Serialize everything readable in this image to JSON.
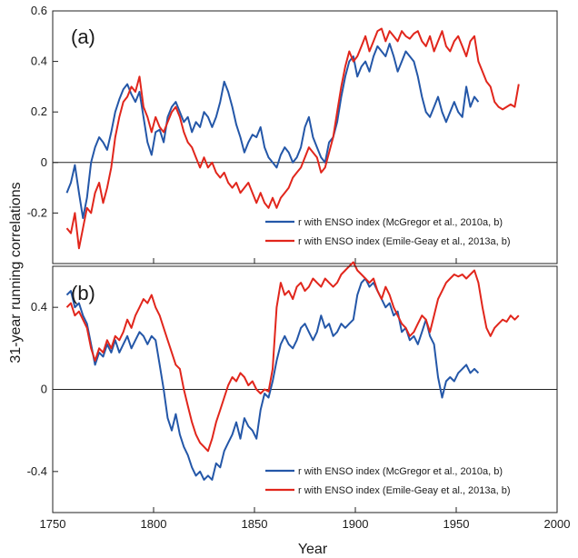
{
  "figure": {
    "xlabel": "Year",
    "ylabel": "31-year running correlations"
  },
  "colors": {
    "blue": "#2457a8",
    "red": "#e1261c",
    "axis": "#222222"
  },
  "chart_data": [
    {
      "type": "line",
      "panel_label": "(a)",
      "xlabel": "Year",
      "ylabel": "31-year running correlations",
      "xlim": [
        1750,
        2000
      ],
      "ylim": [
        -0.4,
        0.6
      ],
      "xticks": [
        1750,
        1800,
        1850,
        1900,
        1950,
        2000
      ],
      "yticks": [
        -0.2,
        0,
        0.2,
        0.4,
        0.6
      ],
      "ytick_labels": [
        "-0.2",
        "0",
        "0.2",
        "0.4",
        "0.6"
      ],
      "zero_line": true,
      "legend_position": "bottom-right",
      "series": [
        {
          "name": "r with ENSO index (McGregor  et al., 2010a, b)",
          "color": "blue",
          "x": [
            1757,
            1759,
            1761,
            1763,
            1765,
            1767,
            1769,
            1771,
            1773,
            1775,
            1777,
            1779,
            1781,
            1783,
            1785,
            1787,
            1789,
            1791,
            1793,
            1795,
            1797,
            1799,
            1801,
            1803,
            1805,
            1807,
            1809,
            1811,
            1813,
            1815,
            1817,
            1819,
            1821,
            1823,
            1825,
            1827,
            1829,
            1831,
            1833,
            1835,
            1837,
            1839,
            1841,
            1843,
            1845,
            1847,
            1849,
            1851,
            1853,
            1855,
            1857,
            1859,
            1861,
            1863,
            1865,
            1867,
            1869,
            1871,
            1873,
            1875,
            1877,
            1879,
            1881,
            1883,
            1885,
            1887,
            1889,
            1891,
            1893,
            1895,
            1897,
            1899,
            1901,
            1903,
            1905,
            1907,
            1909,
            1911,
            1913,
            1915,
            1917,
            1919,
            1921,
            1923,
            1925,
            1927,
            1929,
            1931,
            1933,
            1935,
            1937,
            1939,
            1941,
            1943,
            1945,
            1947,
            1949,
            1951,
            1953,
            1955,
            1957,
            1959,
            1961
          ],
          "y": [
            -0.12,
            -0.08,
            -0.01,
            -0.12,
            -0.22,
            -0.14,
            0.0,
            0.06,
            0.1,
            0.08,
            0.05,
            0.12,
            0.2,
            0.25,
            0.29,
            0.31,
            0.27,
            0.24,
            0.28,
            0.18,
            0.08,
            0.03,
            0.12,
            0.13,
            0.08,
            0.18,
            0.22,
            0.24,
            0.2,
            0.16,
            0.18,
            0.12,
            0.16,
            0.14,
            0.2,
            0.18,
            0.14,
            0.18,
            0.24,
            0.32,
            0.28,
            0.22,
            0.15,
            0.1,
            0.04,
            0.08,
            0.11,
            0.1,
            0.14,
            0.06,
            0.02,
            0.0,
            -0.02,
            0.03,
            0.06,
            0.04,
            0.0,
            0.02,
            0.06,
            0.14,
            0.18,
            0.1,
            0.06,
            0.02,
            0.0,
            0.08,
            0.1,
            0.16,
            0.26,
            0.34,
            0.4,
            0.42,
            0.34,
            0.38,
            0.4,
            0.36,
            0.42,
            0.46,
            0.44,
            0.42,
            0.47,
            0.42,
            0.36,
            0.4,
            0.44,
            0.42,
            0.4,
            0.34,
            0.26,
            0.2,
            0.18,
            0.22,
            0.26,
            0.2,
            0.16,
            0.2,
            0.24,
            0.2,
            0.18,
            0.3,
            0.22,
            0.26,
            0.24
          ]
        },
        {
          "name": "r with ENSO index (Emile-Geay et al., 2013a, b)",
          "color": "red",
          "x": [
            1757,
            1759,
            1761,
            1763,
            1765,
            1767,
            1769,
            1771,
            1773,
            1775,
            1777,
            1779,
            1781,
            1783,
            1785,
            1787,
            1789,
            1791,
            1793,
            1795,
            1797,
            1799,
            1801,
            1803,
            1805,
            1807,
            1809,
            1811,
            1813,
            1815,
            1817,
            1819,
            1821,
            1823,
            1825,
            1827,
            1829,
            1831,
            1833,
            1835,
            1837,
            1839,
            1841,
            1843,
            1845,
            1847,
            1849,
            1851,
            1853,
            1855,
            1857,
            1859,
            1861,
            1863,
            1865,
            1867,
            1869,
            1871,
            1873,
            1875,
            1877,
            1879,
            1881,
            1883,
            1885,
            1887,
            1889,
            1891,
            1893,
            1895,
            1897,
            1899,
            1901,
            1903,
            1905,
            1907,
            1909,
            1911,
            1913,
            1915,
            1917,
            1919,
            1921,
            1923,
            1925,
            1927,
            1929,
            1931,
            1933,
            1935,
            1937,
            1939,
            1941,
            1943,
            1945,
            1947,
            1949,
            1951,
            1953,
            1955,
            1957,
            1959,
            1961,
            1963,
            1965,
            1967,
            1969,
            1971,
            1973,
            1975,
            1977,
            1979,
            1981
          ],
          "y": [
            -0.26,
            -0.28,
            -0.2,
            -0.34,
            -0.26,
            -0.18,
            -0.2,
            -0.12,
            -0.08,
            -0.16,
            -0.1,
            -0.02,
            0.1,
            0.18,
            0.24,
            0.26,
            0.3,
            0.28,
            0.34,
            0.22,
            0.18,
            0.12,
            0.18,
            0.14,
            0.12,
            0.16,
            0.2,
            0.22,
            0.18,
            0.12,
            0.08,
            0.06,
            0.02,
            -0.02,
            0.02,
            -0.02,
            0.0,
            -0.04,
            -0.06,
            -0.04,
            -0.08,
            -0.1,
            -0.08,
            -0.12,
            -0.1,
            -0.08,
            -0.12,
            -0.16,
            -0.12,
            -0.16,
            -0.18,
            -0.14,
            -0.18,
            -0.14,
            -0.12,
            -0.1,
            -0.06,
            -0.04,
            -0.02,
            0.02,
            0.06,
            0.04,
            0.02,
            -0.04,
            -0.02,
            0.04,
            0.1,
            0.2,
            0.3,
            0.38,
            0.44,
            0.4,
            0.42,
            0.46,
            0.5,
            0.44,
            0.48,
            0.52,
            0.53,
            0.48,
            0.52,
            0.5,
            0.48,
            0.52,
            0.5,
            0.49,
            0.51,
            0.52,
            0.48,
            0.46,
            0.5,
            0.44,
            0.48,
            0.52,
            0.46,
            0.44,
            0.48,
            0.5,
            0.46,
            0.42,
            0.48,
            0.5,
            0.4,
            0.36,
            0.32,
            0.3,
            0.24,
            0.22,
            0.21,
            0.22,
            0.23,
            0.22,
            0.31
          ]
        }
      ]
    },
    {
      "type": "line",
      "panel_label": "(b)",
      "xlabel": "Year",
      "ylabel": "31-year running correlations",
      "xlim": [
        1750,
        2000
      ],
      "ylim": [
        -0.6,
        0.6
      ],
      "xticks": [
        1750,
        1800,
        1850,
        1900,
        1950,
        2000
      ],
      "xtick_labels": [
        "1750",
        "1800",
        "1850",
        "1900",
        "1950",
        "2000"
      ],
      "yticks": [
        -0.4,
        0,
        0.4
      ],
      "ytick_labels": [
        "-0.4",
        "0",
        "0.4"
      ],
      "zero_line": true,
      "legend_position": "bottom-right",
      "series": [
        {
          "name": "r with ENSO index (McGregor  et al., 2010a, b)",
          "color": "blue",
          "x": [
            1757,
            1759,
            1761,
            1763,
            1765,
            1767,
            1769,
            1771,
            1773,
            1775,
            1777,
            1779,
            1781,
            1783,
            1785,
            1787,
            1789,
            1791,
            1793,
            1795,
            1797,
            1799,
            1801,
            1803,
            1805,
            1807,
            1809,
            1811,
            1813,
            1815,
            1817,
            1819,
            1821,
            1823,
            1825,
            1827,
            1829,
            1831,
            1833,
            1835,
            1837,
            1839,
            1841,
            1843,
            1845,
            1847,
            1849,
            1851,
            1853,
            1855,
            1857,
            1859,
            1861,
            1863,
            1865,
            1867,
            1869,
            1871,
            1873,
            1875,
            1877,
            1879,
            1881,
            1883,
            1885,
            1887,
            1889,
            1891,
            1893,
            1895,
            1897,
            1899,
            1901,
            1903,
            1905,
            1907,
            1909,
            1911,
            1913,
            1915,
            1917,
            1919,
            1921,
            1923,
            1925,
            1927,
            1929,
            1931,
            1933,
            1935,
            1937,
            1939,
            1941,
            1943,
            1945,
            1947,
            1949,
            1951,
            1953,
            1955,
            1957,
            1959,
            1961
          ],
          "y": [
            0.46,
            0.48,
            0.4,
            0.42,
            0.36,
            0.32,
            0.22,
            0.12,
            0.18,
            0.16,
            0.22,
            0.18,
            0.24,
            0.18,
            0.22,
            0.26,
            0.2,
            0.24,
            0.28,
            0.26,
            0.22,
            0.26,
            0.24,
            0.12,
            0.0,
            -0.14,
            -0.2,
            -0.12,
            -0.22,
            -0.28,
            -0.32,
            -0.38,
            -0.42,
            -0.4,
            -0.44,
            -0.42,
            -0.44,
            -0.36,
            -0.38,
            -0.3,
            -0.26,
            -0.22,
            -0.16,
            -0.24,
            -0.14,
            -0.18,
            -0.2,
            -0.24,
            -0.1,
            -0.02,
            -0.04,
            0.04,
            0.14,
            0.22,
            0.26,
            0.22,
            0.2,
            0.24,
            0.3,
            0.32,
            0.28,
            0.24,
            0.28,
            0.36,
            0.3,
            0.32,
            0.26,
            0.28,
            0.32,
            0.3,
            0.32,
            0.34,
            0.46,
            0.52,
            0.54,
            0.5,
            0.52,
            0.48,
            0.44,
            0.4,
            0.42,
            0.36,
            0.38,
            0.28,
            0.3,
            0.24,
            0.26,
            0.22,
            0.28,
            0.34,
            0.26,
            0.22,
            0.06,
            -0.04,
            0.04,
            0.06,
            0.04,
            0.08,
            0.1,
            0.12,
            0.08,
            0.1,
            0.08
          ]
        },
        {
          "name": "r with ENSO index (Emile-Geay et al., 2013a, b)",
          "color": "red",
          "x": [
            1757,
            1759,
            1761,
            1763,
            1765,
            1767,
            1769,
            1771,
            1773,
            1775,
            1777,
            1779,
            1781,
            1783,
            1785,
            1787,
            1789,
            1791,
            1793,
            1795,
            1797,
            1799,
            1801,
            1803,
            1805,
            1807,
            1809,
            1811,
            1813,
            1815,
            1817,
            1819,
            1821,
            1823,
            1825,
            1827,
            1829,
            1831,
            1833,
            1835,
            1837,
            1839,
            1841,
            1843,
            1845,
            1847,
            1849,
            1851,
            1853,
            1855,
            1857,
            1859,
            1861,
            1863,
            1865,
            1867,
            1869,
            1871,
            1873,
            1875,
            1877,
            1879,
            1881,
            1883,
            1885,
            1887,
            1889,
            1891,
            1893,
            1895,
            1897,
            1899,
            1901,
            1903,
            1905,
            1907,
            1909,
            1911,
            1913,
            1915,
            1917,
            1919,
            1921,
            1923,
            1925,
            1927,
            1929,
            1931,
            1933,
            1935,
            1937,
            1939,
            1941,
            1943,
            1945,
            1947,
            1949,
            1951,
            1953,
            1955,
            1957,
            1959,
            1961,
            1963,
            1965,
            1967,
            1969,
            1971,
            1973,
            1975,
            1977,
            1979,
            1981
          ],
          "y": [
            0.4,
            0.42,
            0.36,
            0.38,
            0.34,
            0.3,
            0.2,
            0.14,
            0.2,
            0.18,
            0.24,
            0.2,
            0.26,
            0.24,
            0.28,
            0.34,
            0.3,
            0.36,
            0.4,
            0.44,
            0.42,
            0.46,
            0.4,
            0.36,
            0.3,
            0.24,
            0.18,
            0.12,
            0.1,
            0.0,
            -0.08,
            -0.16,
            -0.22,
            -0.26,
            -0.28,
            -0.3,
            -0.24,
            -0.16,
            -0.1,
            -0.04,
            0.02,
            0.06,
            0.04,
            0.08,
            0.06,
            0.02,
            0.04,
            0.0,
            -0.02,
            0.0,
            -0.01,
            0.1,
            0.4,
            0.52,
            0.46,
            0.48,
            0.44,
            0.5,
            0.52,
            0.48,
            0.5,
            0.54,
            0.52,
            0.5,
            0.54,
            0.52,
            0.5,
            0.52,
            0.56,
            0.58,
            0.6,
            0.62,
            0.58,
            0.56,
            0.54,
            0.52,
            0.54,
            0.48,
            0.44,
            0.5,
            0.46,
            0.4,
            0.36,
            0.32,
            0.3,
            0.26,
            0.28,
            0.32,
            0.36,
            0.34,
            0.28,
            0.36,
            0.44,
            0.48,
            0.52,
            0.54,
            0.56,
            0.55,
            0.56,
            0.54,
            0.56,
            0.58,
            0.52,
            0.4,
            0.3,
            0.26,
            0.3,
            0.32,
            0.34,
            0.33,
            0.36,
            0.34,
            0.36
          ]
        }
      ]
    }
  ]
}
